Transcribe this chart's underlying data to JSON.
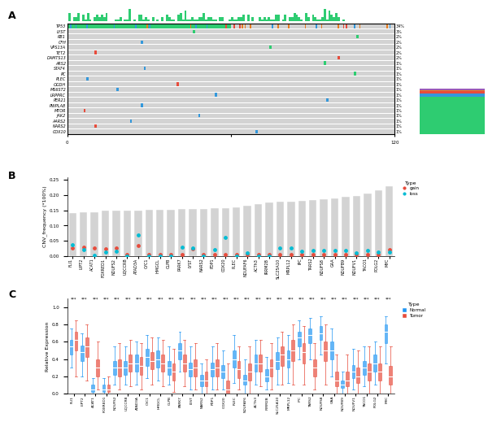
{
  "panel_a": {
    "genes": [
      "TP53",
      "LYST",
      "RB1",
      "CFH",
      "VPS13A",
      "TET2",
      "DAMTS13",
      "ARS2",
      "STAT4",
      "PC",
      "PLEC",
      "OGDH",
      "MS6ST2",
      "LRPPRC",
      "PER21",
      "PWPLA8",
      "MTOR",
      "JAK2",
      "AARS2",
      "NARS2",
      "COX10"
    ],
    "percentages": [
      "34%",
      "3%",
      "2%",
      "2%",
      "2%",
      "2%",
      "2%",
      "1%",
      "1%",
      "1%",
      "1%",
      "1%",
      "1%",
      "1%",
      "1%",
      "1%",
      "1%",
      "1%",
      "1%",
      "1%",
      "1%"
    ],
    "bar_colors": [
      "#e74c3c",
      "#3498db",
      "#2ecc71",
      "#e67e22",
      "#9b59b6"
    ],
    "bg_color": "#d3d3d3",
    "scale_max": 325
  },
  "panel_b": {
    "categories": [
      "FLI1",
      "LIPT2",
      "ACAT1",
      "FOXRED1",
      "NDUFS2",
      "UQCCRB",
      "ATAD3A",
      "CYC1",
      "HMGCL",
      "CLPB",
      "PARK7",
      "LYST",
      "NARS2",
      "PDP1",
      "COX20",
      "PLEC",
      "NDUFAF6",
      "ACTh3",
      "IRRM2B",
      "SLC25A10",
      "MRPL12",
      "IPC",
      "TARS2",
      "NDUFS8",
      "GAA",
      "NDUFB9",
      "NDUFV1",
      "TACO1",
      "POLG2",
      "MYC"
    ],
    "gain": [
      0.027,
      0.03,
      0.027,
      0.023,
      0.025,
      0.005,
      0.035,
      0.005,
      0.005,
      0.005,
      0.005,
      0.023,
      0.005,
      0.005,
      0.005,
      0.005,
      0.005,
      0.005,
      0.005,
      0.005,
      0.005,
      0.005,
      0.005,
      0.005,
      0.005,
      0.005,
      0.005,
      0.005,
      0.005,
      0.022
    ],
    "loss": [
      0.037,
      0.02,
      0.003,
      0.012,
      0.015,
      0.0,
      0.07,
      0.0,
      0.0,
      0.0,
      0.03,
      0.025,
      0.0,
      0.02,
      0.06,
      0.0,
      0.01,
      0.0,
      0.0,
      0.025,
      0.025,
      0.015,
      0.018,
      0.018,
      0.018,
      0.018,
      0.01,
      0.018,
      0.013,
      0.013
    ],
    "total": [
      0.14,
      0.145,
      0.145,
      0.148,
      0.15,
      0.15,
      0.15,
      0.152,
      0.152,
      0.152,
      0.155,
      0.155,
      0.155,
      0.157,
      0.158,
      0.16,
      0.165,
      0.17,
      0.175,
      0.178,
      0.178,
      0.18,
      0.185,
      0.187,
      0.19,
      0.195,
      0.198,
      0.205,
      0.215,
      0.23
    ],
    "gain_color": "#e74c3c",
    "loss_color": "#00bcd4",
    "bar_color": "#d3d3d3",
    "ylabel": "CNV_frequency (*100%)",
    "ylim": [
      0,
      0.26
    ]
  },
  "panel_c": {
    "categories": [
      "FLI1",
      "LIPT2",
      "ACAT1",
      "FOXRED1",
      "NDUFS2",
      "UQCCRB",
      "ATAD3A",
      "CYC1",
      "HMGCL",
      "CLPB",
      "PARK7",
      "LYST",
      "NARS2",
      "PDP1",
      "COX20",
      "PLEC",
      "NDUFAF6",
      "ACTh3",
      "IRRM2B",
      "SLC25A10",
      "MRPL12",
      "IPC",
      "TARS2",
      "NDUFS8",
      "GAA",
      "NDUFB9",
      "NDUFV1",
      "TACO1",
      "POLG2",
      "MYC"
    ],
    "normal_median": [
      0.55,
      0.48,
      0.05,
      0.05,
      0.3,
      0.3,
      0.35,
      0.42,
      0.4,
      0.3,
      0.5,
      0.28,
      0.15,
      0.28,
      0.25,
      0.4,
      0.15,
      0.35,
      0.2,
      0.38,
      0.4,
      0.65,
      0.68,
      0.7,
      0.5,
      0.1,
      0.25,
      0.3,
      0.35,
      0.72
    ],
    "normal_q1": [
      0.45,
      0.38,
      0.02,
      0.02,
      0.22,
      0.22,
      0.25,
      0.32,
      0.3,
      0.22,
      0.4,
      0.2,
      0.08,
      0.2,
      0.18,
      0.3,
      0.1,
      0.25,
      0.14,
      0.28,
      0.3,
      0.55,
      0.58,
      0.62,
      0.4,
      0.07,
      0.18,
      0.22,
      0.25,
      0.58
    ],
    "normal_q3": [
      0.62,
      0.56,
      0.1,
      0.1,
      0.38,
      0.38,
      0.45,
      0.52,
      0.5,
      0.38,
      0.58,
      0.36,
      0.22,
      0.36,
      0.33,
      0.5,
      0.22,
      0.45,
      0.28,
      0.48,
      0.5,
      0.72,
      0.75,
      0.78,
      0.6,
      0.15,
      0.33,
      0.38,
      0.45,
      0.8
    ],
    "normal_min": [
      0.3,
      0.2,
      0.0,
      0.0,
      0.1,
      0.1,
      0.1,
      0.18,
      0.15,
      0.1,
      0.25,
      0.05,
      0.0,
      0.05,
      0.05,
      0.12,
      0.0,
      0.1,
      0.05,
      0.1,
      0.12,
      0.4,
      0.4,
      0.45,
      0.2,
      0.0,
      0.05,
      0.08,
      0.1,
      0.35
    ],
    "normal_max": [
      0.75,
      0.7,
      0.18,
      0.18,
      0.55,
      0.55,
      0.6,
      0.68,
      0.65,
      0.55,
      0.72,
      0.55,
      0.35,
      0.55,
      0.5,
      0.68,
      0.4,
      0.62,
      0.42,
      0.65,
      0.68,
      0.85,
      0.88,
      0.9,
      0.75,
      0.25,
      0.52,
      0.55,
      0.6,
      0.9
    ],
    "tumor_median": [
      0.62,
      0.55,
      0.3,
      0.05,
      0.3,
      0.35,
      0.32,
      0.38,
      0.35,
      0.25,
      0.35,
      0.3,
      0.15,
      0.3,
      0.05,
      0.28,
      0.25,
      0.35,
      0.3,
      0.45,
      0.5,
      0.48,
      0.3,
      0.5,
      0.15,
      0.15,
      0.2,
      0.25,
      0.25,
      0.2
    ],
    "tumor_q1": [
      0.5,
      0.42,
      0.2,
      0.02,
      0.2,
      0.25,
      0.22,
      0.28,
      0.25,
      0.15,
      0.25,
      0.2,
      0.08,
      0.2,
      0.0,
      0.18,
      0.15,
      0.25,
      0.2,
      0.32,
      0.38,
      0.35,
      0.2,
      0.38,
      0.08,
      0.08,
      0.12,
      0.15,
      0.15,
      0.1
    ],
    "tumor_q3": [
      0.72,
      0.65,
      0.4,
      0.1,
      0.4,
      0.45,
      0.42,
      0.48,
      0.45,
      0.35,
      0.45,
      0.4,
      0.25,
      0.4,
      0.15,
      0.38,
      0.35,
      0.45,
      0.4,
      0.55,
      0.62,
      0.58,
      0.4,
      0.6,
      0.25,
      0.25,
      0.3,
      0.35,
      0.35,
      0.32
    ],
    "tumor_min": [
      0.2,
      0.15,
      0.05,
      0.0,
      0.05,
      0.08,
      0.05,
      0.1,
      0.08,
      0.02,
      0.08,
      0.05,
      0.0,
      0.05,
      0.0,
      0.05,
      0.0,
      0.08,
      0.05,
      0.1,
      0.1,
      0.1,
      0.05,
      0.1,
      0.0,
      0.0,
      0.0,
      0.0,
      0.0,
      0.0
    ],
    "tumor_max": [
      0.85,
      0.8,
      0.6,
      0.2,
      0.58,
      0.62,
      0.58,
      0.65,
      0.62,
      0.52,
      0.62,
      0.58,
      0.4,
      0.58,
      0.35,
      0.55,
      0.55,
      0.62,
      0.58,
      0.72,
      0.8,
      0.78,
      0.58,
      0.8,
      0.45,
      0.45,
      0.5,
      0.55,
      0.55,
      0.55
    ],
    "normal_color": "#2196F3",
    "tumor_color": "#e74c3c",
    "ylabel": "Relative Expression",
    "ylim": [
      0,
      1.1
    ]
  }
}
